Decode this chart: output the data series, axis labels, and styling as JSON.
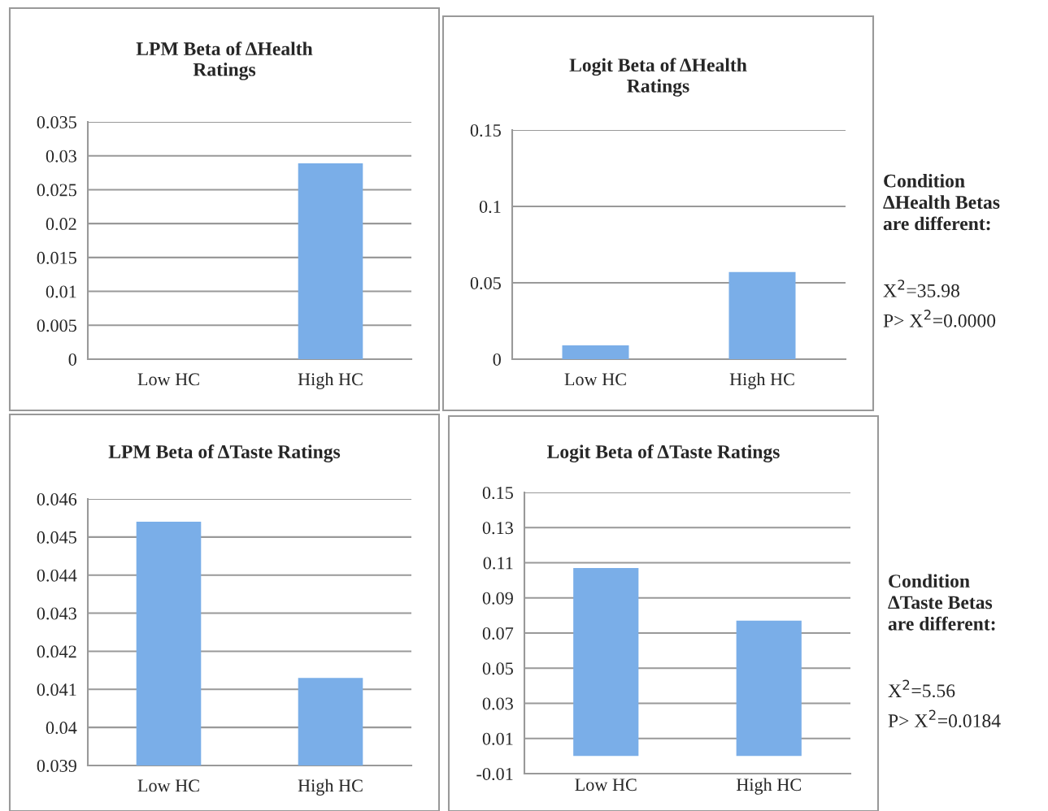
{
  "chart_data": [
    {
      "type": "bar",
      "title": "LPM Beta of ΔHealth\nRatings",
      "categories": [
        "Low HC",
        "High HC"
      ],
      "values": [
        0,
        0.0289
      ],
      "color": "#7aaee8",
      "ylim": [
        0,
        0.035
      ],
      "yticks": [
        0,
        0.005,
        0.01,
        0.015,
        0.02,
        0.025,
        0.03,
        0.035
      ],
      "grid": "y",
      "legend": false
    },
    {
      "type": "bar",
      "title": "Logit Beta of ΔHealth\nRatings",
      "categories": [
        "Low HC",
        "High HC"
      ],
      "values": [
        0.009,
        0.057
      ],
      "color": "#7aaee8",
      "ylim": [
        0,
        0.15
      ],
      "yticks": [
        0,
        0.05,
        0.1,
        0.15
      ],
      "grid": "y",
      "legend": false,
      "annotations": [
        "Condition\nΔHealth Betas\nare different:",
        "X$^{2}$=35.98",
        "P> X$^{2}$=0.0000"
      ]
    },
    {
      "type": "bar",
      "title": "LPM Beta of ΔTaste Ratings",
      "categories": [
        "Low HC",
        "High HC"
      ],
      "values": [
        0.0454,
        0.0413
      ],
      "color": "#7aaee8",
      "ylim": [
        0.039,
        0.046
      ],
      "yticks": [
        0.039,
        0.04,
        0.041,
        0.042,
        0.043,
        0.044,
        0.045,
        0.046
      ],
      "grid": "y",
      "legend": false
    },
    {
      "type": "bar",
      "title": "Logit Beta of ΔTaste Ratings",
      "categories": [
        "Low HC",
        "High HC"
      ],
      "values": [
        0.107,
        0.077
      ],
      "color": "#7aaee8",
      "ylim": [
        -0.01,
        0.15
      ],
      "yticks": [
        -0.01,
        0.01,
        0.03,
        0.05,
        0.07,
        0.09,
        0.11,
        0.13,
        0.15
      ],
      "grid": "y",
      "legend": false,
      "annotations": [
        "Condition\nΔTaste Betas\nare different:",
        "X$^{2}$=5.56",
        "P> X$^{2}$=0.0184"
      ]
    }
  ]
}
